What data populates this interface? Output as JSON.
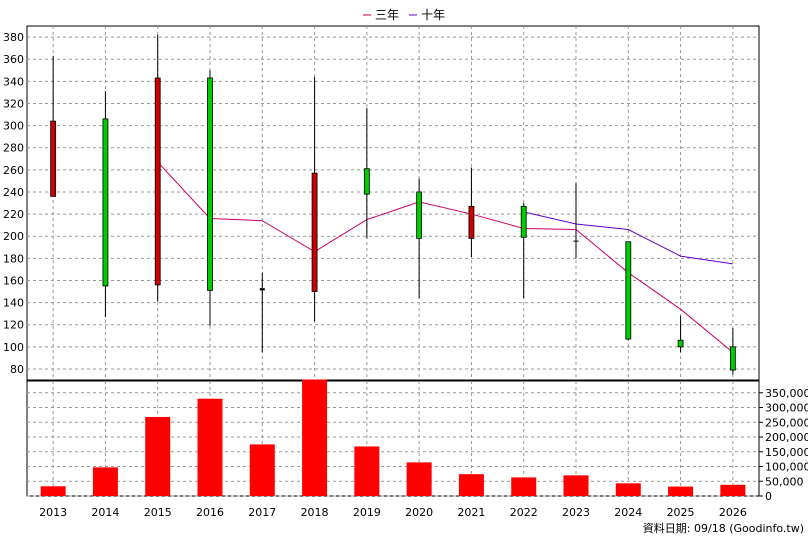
{
  "chart_data": {
    "type": "candlestick+line+bar",
    "legend": [
      {
        "name": "三年",
        "color": "#cc0066"
      },
      {
        "name": "十年",
        "color": "#6600cc"
      }
    ],
    "legend_position": "top-center",
    "grid": true,
    "years": [
      "2013",
      "2014",
      "2015",
      "2016",
      "2017",
      "2018",
      "2019",
      "2020",
      "2021",
      "2022",
      "2023",
      "2024",
      "2025",
      "2026"
    ],
    "price": {
      "ylim": [
        70,
        390
      ],
      "yticks": [
        80,
        100,
        120,
        140,
        160,
        180,
        200,
        220,
        240,
        260,
        280,
        300,
        320,
        340,
        360,
        380
      ],
      "candles": [
        {
          "year": "2013",
          "open": 236,
          "close": 304,
          "high": 363,
          "low": 236
        },
        {
          "year": "2014",
          "open": 306,
          "close": 155,
          "high": 331,
          "low": 127
        },
        {
          "year": "2015",
          "open": 156,
          "close": 343,
          "high": 382,
          "low": 141
        },
        {
          "year": "2016",
          "open": 343,
          "close": 151,
          "high": 350,
          "low": 119
        },
        {
          "year": "2017",
          "open": 151,
          "close": 153,
          "high": 167,
          "low": 95
        },
        {
          "year": "2018",
          "open": 150,
          "close": 257,
          "high": 344,
          "low": 123
        },
        {
          "year": "2019",
          "open": 261,
          "close": 238,
          "high": 316,
          "low": 198
        },
        {
          "year": "2020",
          "open": 240,
          "close": 198,
          "high": 252,
          "low": 144
        },
        {
          "year": "2021",
          "open": 198,
          "close": 227,
          "high": 262,
          "low": 181
        },
        {
          "year": "2022",
          "open": 227,
          "close": 199,
          "high": 230,
          "low": 144
        },
        {
          "year": "2023",
          "open": 196,
          "close": 196,
          "high": 248,
          "low": 180
        },
        {
          "year": "2024",
          "open": 195,
          "close": 107,
          "high": 195,
          "low": 106
        },
        {
          "year": "2025",
          "open": 106,
          "close": 100,
          "high": 128,
          "low": 95
        },
        {
          "year": "2026",
          "open": 100,
          "close": 79,
          "high": 117,
          "low": 75
        }
      ],
      "ma3": {
        "name": "三年",
        "x": [
          "2015",
          "2016",
          "2017",
          "2018",
          "2019",
          "2020",
          "2021",
          "2022",
          "2023",
          "2024",
          "2025",
          "2026"
        ],
        "values": [
          267,
          216,
          214,
          186,
          215,
          231,
          220,
          207,
          206,
          167,
          134,
          95
        ]
      },
      "ma10": {
        "name": "十年",
        "x": [
          "2022",
          "2023",
          "2024",
          "2025",
          "2026"
        ],
        "values": [
          222,
          211,
          206,
          182,
          175
        ]
      }
    },
    "volume": {
      "ylim": [
        0,
        390000
      ],
      "yticks": [
        0,
        50000,
        100000,
        150000,
        200000,
        250000,
        300000,
        350000
      ],
      "ytick_labels": [
        "0",
        "50,000",
        "100,000",
        "150,000",
        "200,000",
        "250,000",
        "300,000",
        "350,000"
      ],
      "values": [
        33000,
        97000,
        268000,
        330000,
        175000,
        395000,
        168000,
        114000,
        74000,
        63000,
        70000,
        43000,
        32000,
        38000
      ]
    }
  },
  "source": "資料日期: 09/18  (Goodinfo.tw)"
}
